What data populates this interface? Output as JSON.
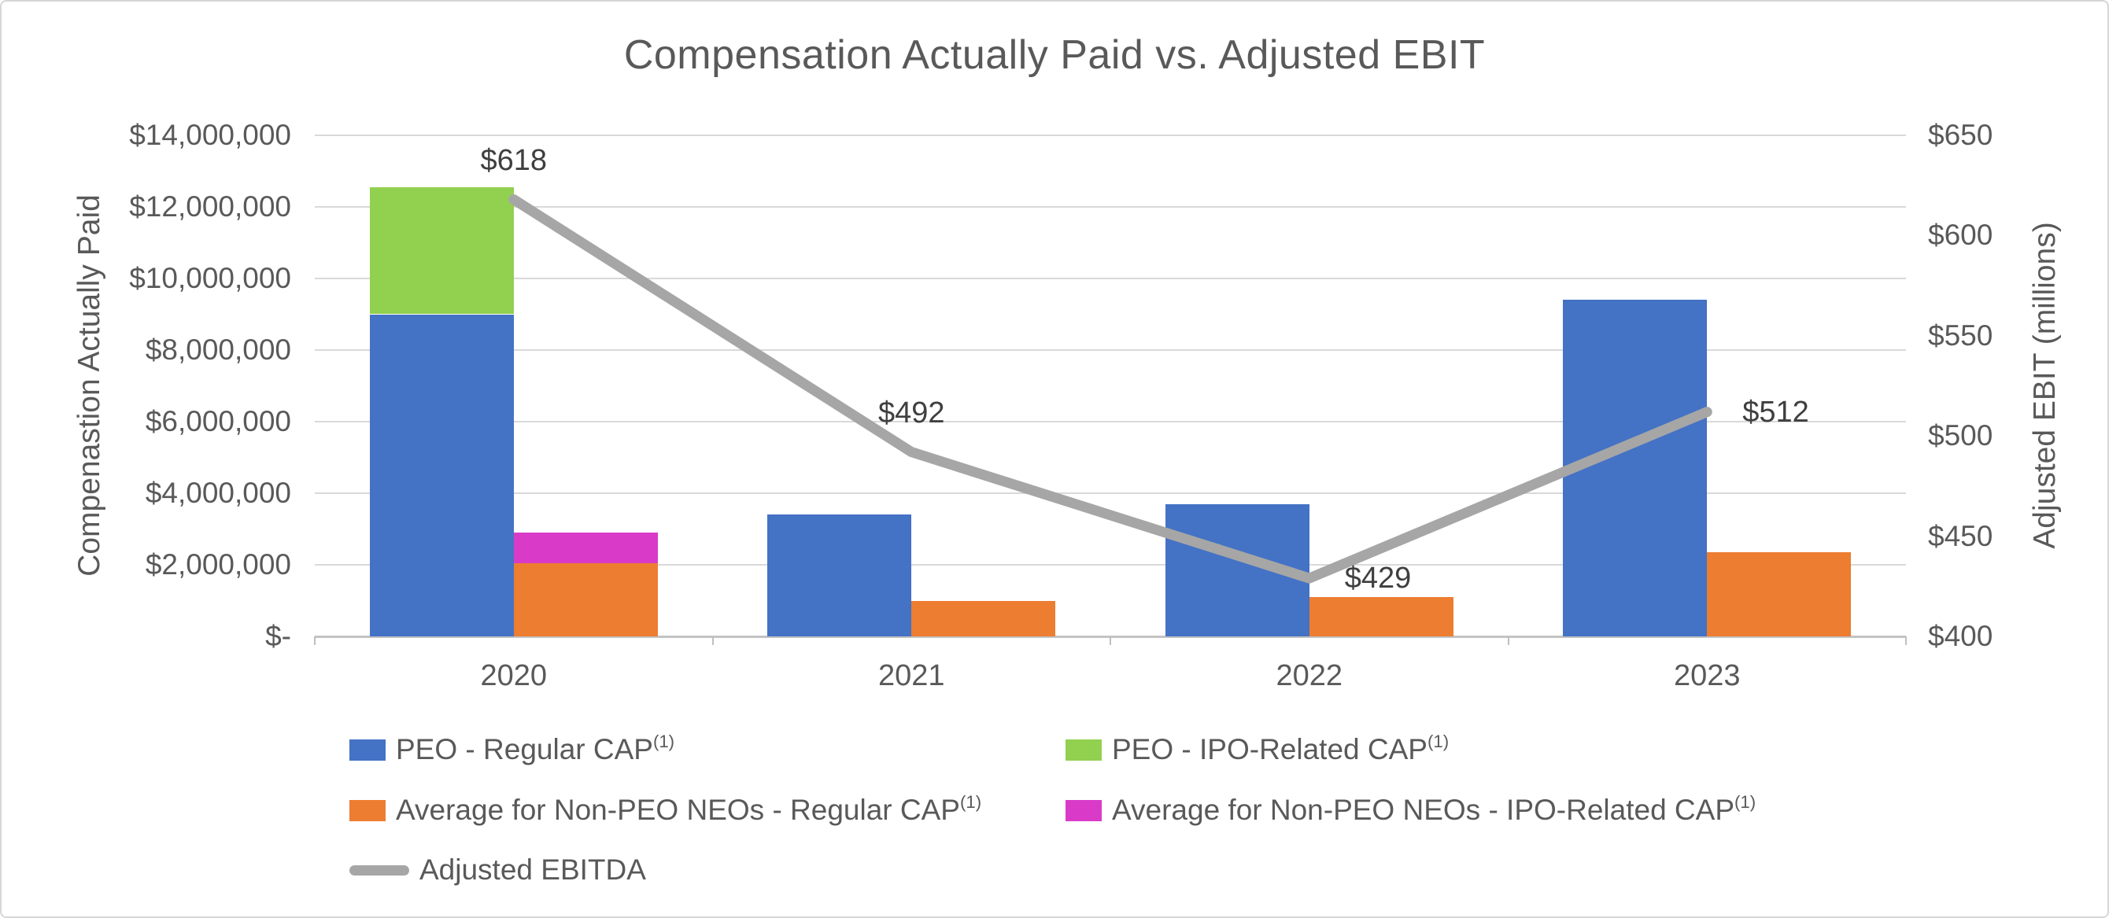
{
  "chart_title": "Compensation Actually Paid vs. Adjusted EBIT",
  "chart_data": {
    "type": "combo-stacked-bar-line",
    "title": "Compensation Actually Paid vs. Adjusted EBIT",
    "categories": [
      "2020",
      "2021",
      "2022",
      "2023"
    ],
    "bar_series": [
      {
        "name": "PEO - Regular CAP",
        "sup": "(1)",
        "color": "#4472C4",
        "stack": "PEO",
        "values": [
          9000000,
          3400000,
          3700000,
          9400000
        ]
      },
      {
        "name": "PEO - IPO-Related CAP",
        "sup": "(1)",
        "color": "#92D050",
        "stack": "PEO",
        "values": [
          3550000,
          0,
          0,
          0
        ]
      },
      {
        "name": "Average for Non-PEO NEOs - Regular CAP",
        "sup": "(1)",
        "color": "#ED7D31",
        "stack": "NonPEO",
        "values": [
          2050000,
          1000000,
          1100000,
          2350000
        ]
      },
      {
        "name": "Average for Non-PEO NEOs - IPO-Related CAP",
        "sup": "(1)",
        "color": "#D93BC8",
        "stack": "NonPEO",
        "values": [
          850000,
          0,
          0,
          0
        ]
      }
    ],
    "line_series": {
      "name": "Adjusted EBITDA",
      "color": "#A6A6A6",
      "axis": "right",
      "values": [
        618,
        492,
        429,
        512
      ],
      "labels": [
        "$618",
        "$492",
        "$429",
        "$512"
      ],
      "label_positions": [
        "above",
        "above",
        "right",
        "right"
      ]
    },
    "left_axis": {
      "title": "Compenastion Actually Paid",
      "min": 0,
      "max": 14000000,
      "step": 2000000,
      "ticks": [
        "$14,000,000",
        "$12,000,000",
        "$10,000,000",
        "$8,000,000",
        "$6,000,000",
        "$4,000,000",
        "$2,000,000",
        "$-"
      ]
    },
    "right_axis": {
      "title": "Adjusted EBIT (millions)",
      "min": 400,
      "max": 650,
      "step": 50,
      "ticks": [
        "$650",
        "$600",
        "$550",
        "$500",
        "$450",
        "$400"
      ]
    },
    "grid": true,
    "legend_position": "bottom-two-columns",
    "colors": {
      "gridline": "#D9D9D9",
      "axis_text": "#595959",
      "data_label": "#3F3F3F"
    }
  }
}
